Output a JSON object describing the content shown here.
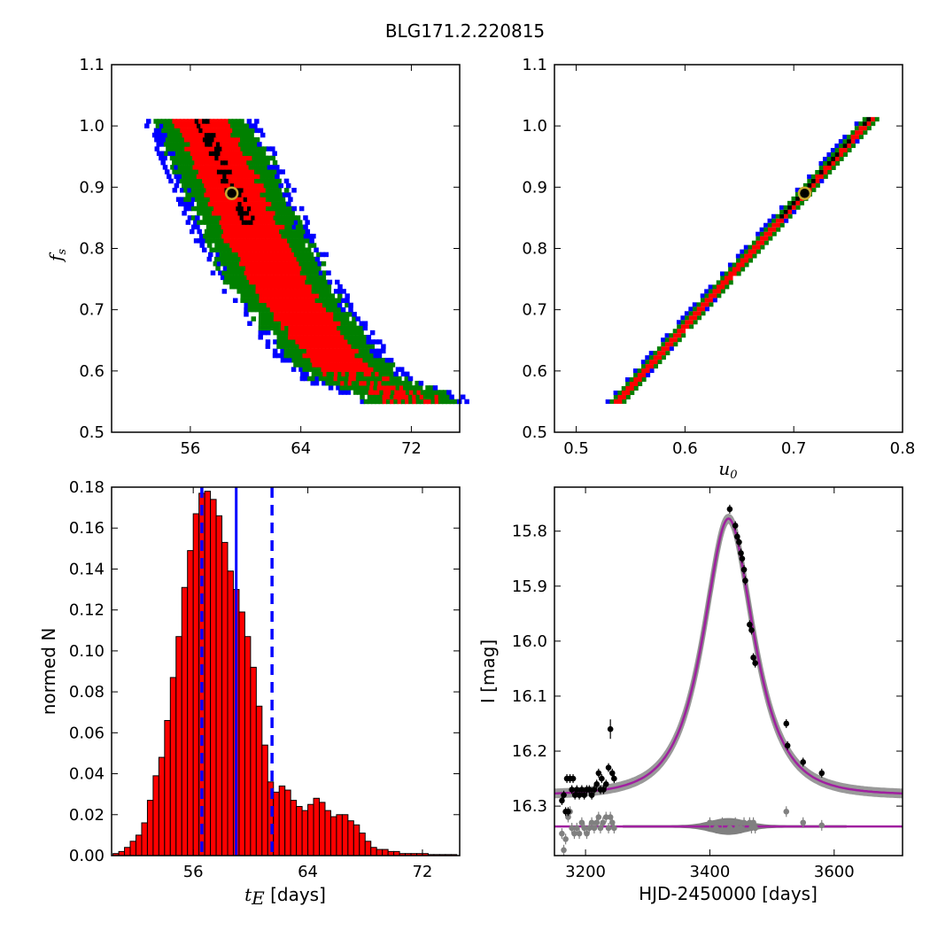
{
  "figure": {
    "title": "BLG171.2.220815"
  },
  "colors": {
    "blue": "#0000ff",
    "green": "#008000",
    "red": "#ff0000",
    "black": "#000000",
    "model": "#a020a0",
    "band": "#808080",
    "marker_edge": "#c8a830"
  },
  "chart_data": [
    {
      "id": "tE_fs",
      "type": "heatmap",
      "xlabel": "",
      "ylabel": "f",
      "ylabel_sub": "s",
      "xlim": [
        50.3,
        75.5
      ],
      "ylim": [
        0.5,
        1.1
      ],
      "xticks": [
        56,
        64,
        72
      ],
      "yticks": [
        0.5,
        0.6,
        0.7,
        0.8,
        0.9,
        1.0,
        1.1
      ],
      "ytick_labels": [
        "0.5",
        "0.6",
        "0.7",
        "0.8",
        "0.9",
        "1.0",
        "1.1"
      ],
      "best_fit": [
        59.0,
        0.89
      ],
      "band_centerline": [
        [
          56.8,
          1.01
        ],
        [
          58.5,
          0.93
        ],
        [
          60.5,
          0.83
        ],
        [
          62.5,
          0.74
        ],
        [
          64.5,
          0.68
        ],
        [
          66.5,
          0.62
        ],
        [
          68.0,
          0.59
        ],
        [
          70.0,
          0.57
        ],
        [
          72.0,
          0.56
        ]
      ],
      "band_halfwidth_tE": {
        "blue": 3.2,
        "green": 2.6,
        "red": 1.5,
        "black": 0.55
      },
      "black_range_fs": [
        0.84,
        1.01
      ],
      "red_range_fs": [
        0.6,
        1.01
      ]
    },
    {
      "id": "u0_fs",
      "type": "heatmap",
      "xlabel": "u",
      "xlabel_sub": "0",
      "ylabel": "",
      "xlim": [
        0.48,
        0.8
      ],
      "ylim": [
        0.5,
        1.1
      ],
      "xticks": [
        0.5,
        0.6,
        0.7,
        0.8
      ],
      "xtick_labels": [
        "0.5",
        "0.6",
        "0.7",
        "0.8"
      ],
      "yticks": [
        0.5,
        0.6,
        0.7,
        0.8,
        0.9,
        1.0,
        1.1
      ],
      "ytick_labels": [
        "0.5",
        "0.6",
        "0.7",
        "0.8",
        "0.9",
        "1.0",
        "1.1"
      ],
      "best_fit": [
        0.71,
        0.89
      ],
      "band_line": {
        "u0_at_fs_0_55": 0.538,
        "u0_at_fs_1_01": 0.77
      },
      "band_halfwidth_u0": {
        "blue": 0.009,
        "green": 0.007,
        "red": 0.004,
        "black": 0.0018
      },
      "black_range_fs": [
        0.84,
        1.01
      ]
    },
    {
      "id": "tE_hist",
      "type": "bar",
      "xlabel": "t",
      "xlabel_sub": "E",
      "xlabel_unit": " [days]",
      "ylabel": "normed N",
      "xlim": [
        50.3,
        74.6
      ],
      "ylim": [
        0,
        0.18
      ],
      "xticks": [
        56,
        64,
        72
      ],
      "yticks": [
        0,
        0.02,
        0.04,
        0.06,
        0.08,
        0.1,
        0.12,
        0.14,
        0.16,
        0.18
      ],
      "ytick_labels": [
        "0.00",
        "0.02",
        "0.04",
        "0.06",
        "0.08",
        "0.10",
        "0.12",
        "0.14",
        "0.16",
        "0.18"
      ],
      "bin_start": 50.4,
      "bin_width": 0.4,
      "values": [
        0.001,
        0.002,
        0.004,
        0.007,
        0.01,
        0.016,
        0.027,
        0.039,
        0.048,
        0.066,
        0.087,
        0.107,
        0.131,
        0.149,
        0.167,
        0.177,
        0.178,
        0.174,
        0.166,
        0.153,
        0.139,
        0.13,
        0.119,
        0.107,
        0.092,
        0.073,
        0.054,
        0.036,
        0.031,
        0.034,
        0.032,
        0.027,
        0.024,
        0.022,
        0.025,
        0.028,
        0.026,
        0.022,
        0.019,
        0.02,
        0.02,
        0.017,
        0.015,
        0.011,
        0.007,
        0.004,
        0.003,
        0.003,
        0.002,
        0.002,
        0.001,
        0.001,
        0.001,
        0.001,
        0.001,
        0.0005,
        0.0005,
        0.0005,
        0.0005,
        0.0005
      ],
      "median": 59.0,
      "interval": [
        56.6,
        61.5
      ]
    },
    {
      "id": "lightcurve",
      "type": "scatter",
      "xlabel": "HJD-2450000 [days]",
      "ylabel": "I [mag]",
      "xlim": [
        3150,
        3710
      ],
      "ylim": [
        16.39,
        15.72
      ],
      "xticks": [
        3200,
        3400,
        3600
      ],
      "yticks": [
        15.8,
        15.9,
        16.0,
        16.1,
        16.2,
        16.3
      ],
      "ytick_labels": [
        "15.8",
        "15.9",
        "16.0",
        "16.1",
        "16.2",
        "16.3"
      ],
      "model": {
        "t0": 3430,
        "tE": 59,
        "u0": 0.71,
        "fs": 0.89,
        "I_base": 16.28
      },
      "residual_baseline": 16.337,
      "data": [
        [
          3162,
          16.29
        ],
        [
          3165,
          16.28
        ],
        [
          3168,
          16.31
        ],
        [
          3170,
          16.25
        ],
        [
          3172,
          16.31
        ],
        [
          3175,
          16.25
        ],
        [
          3178,
          16.27
        ],
        [
          3180,
          16.25
        ],
        [
          3183,
          16.28
        ],
        [
          3186,
          16.27
        ],
        [
          3190,
          16.28
        ],
        [
          3194,
          16.27
        ],
        [
          3198,
          16.28
        ],
        [
          3202,
          16.27
        ],
        [
          3206,
          16.27
        ],
        [
          3210,
          16.28
        ],
        [
          3214,
          16.27
        ],
        [
          3218,
          16.26
        ],
        [
          3221,
          16.24
        ],
        [
          3224,
          16.27
        ],
        [
          3226,
          16.25
        ],
        [
          3229,
          16.27
        ],
        [
          3233,
          16.26
        ],
        [
          3237,
          16.23
        ],
        [
          3240,
          16.16
        ],
        [
          3243,
          16.24
        ],
        [
          3246,
          16.25
        ],
        [
          3432,
          15.76
        ],
        [
          3441,
          15.79
        ],
        [
          3444,
          15.81
        ],
        [
          3447,
          15.82
        ],
        [
          3450,
          15.84
        ],
        [
          3452,
          15.85
        ],
        [
          3455,
          15.87
        ],
        [
          3457,
          15.89
        ],
        [
          3464,
          15.97
        ],
        [
          3467,
          15.98
        ],
        [
          3470,
          16.03
        ],
        [
          3473,
          16.04
        ],
        [
          3523,
          16.15
        ],
        [
          3525,
          16.19
        ],
        [
          3550,
          16.22
        ],
        [
          3580,
          16.24
        ]
      ],
      "residuals": [
        [
          3162,
          16.35
        ],
        [
          3165,
          16.38
        ],
        [
          3168,
          16.36
        ],
        [
          3172,
          16.32
        ],
        [
          3175,
          16.31
        ],
        [
          3178,
          16.34
        ],
        [
          3182,
          16.35
        ],
        [
          3186,
          16.34
        ],
        [
          3190,
          16.35
        ],
        [
          3194,
          16.33
        ],
        [
          3198,
          16.34
        ],
        [
          3202,
          16.35
        ],
        [
          3206,
          16.34
        ],
        [
          3210,
          16.33
        ],
        [
          3214,
          16.34
        ],
        [
          3218,
          16.33
        ],
        [
          3221,
          16.32
        ],
        [
          3224,
          16.34
        ],
        [
          3228,
          16.33
        ],
        [
          3233,
          16.32
        ],
        [
          3237,
          16.34
        ],
        [
          3240,
          16.32
        ],
        [
          3243,
          16.33
        ],
        [
          3246,
          16.34
        ],
        [
          3400,
          16.33
        ],
        [
          3410,
          16.34
        ],
        [
          3420,
          16.33
        ],
        [
          3432,
          16.34
        ],
        [
          3441,
          16.33
        ],
        [
          3444,
          16.34
        ],
        [
          3450,
          16.34
        ],
        [
          3455,
          16.33
        ],
        [
          3464,
          16.33
        ],
        [
          3467,
          16.34
        ],
        [
          3470,
          16.33
        ],
        [
          3473,
          16.34
        ],
        [
          3523,
          16.31
        ],
        [
          3550,
          16.33
        ],
        [
          3580,
          16.335
        ]
      ]
    }
  ]
}
